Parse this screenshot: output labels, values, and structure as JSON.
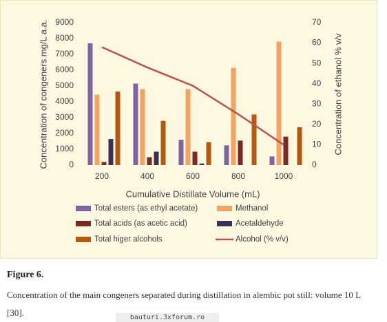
{
  "chart_data": {
    "type": "bar",
    "x_label": "Cumulative Distillate Volume (mL)",
    "y_label": "Concentration of congeners mg/L a.a.",
    "y2_label": "Concentration of ethanol % v/v",
    "categories": [
      "200",
      "400",
      "600",
      "800",
      "1000"
    ],
    "series": [
      {
        "name": "Total esters (as ethyl acetate)",
        "color": "#8064a2",
        "values": [
          7700,
          5150,
          1600,
          1250,
          550
        ]
      },
      {
        "name": "Methanol",
        "color": "#f4a460",
        "values": [
          4450,
          4800,
          4800,
          6150,
          7800
        ]
      },
      {
        "name": "Total acids  (as acetic acid)",
        "color": "#7a2a24",
        "values": [
          200,
          500,
          850,
          1550,
          1800
        ]
      },
      {
        "name": "Acetaldehyde",
        "color": "#3d2f52",
        "values": [
          1650,
          850,
          100,
          0,
          0
        ]
      },
      {
        "name": "Total higer alcohols",
        "color": "#b5590f",
        "values": [
          4650,
          2800,
          1450,
          3200,
          2400
        ]
      },
      {
        "name": "Alcohol (% v/v)",
        "color": "#c0504d",
        "type": "line",
        "axis": "y2",
        "values": [
          58,
          48,
          39,
          25,
          10
        ]
      }
    ],
    "ylim": [
      0,
      9000
    ],
    "yticks": [
      0,
      1000,
      2000,
      3000,
      4000,
      5000,
      6000,
      7000,
      8000,
      9000
    ],
    "y2lim": [
      0,
      70
    ],
    "y2ticks": [
      0,
      10,
      20,
      30,
      40,
      50,
      60,
      70
    ],
    "grid": false,
    "legend": "bottom"
  },
  "figure": {
    "label": "Figure 6.",
    "caption": "Concentration of the main congeners separated during distillation in alembic pot still: volume 10 L [30]."
  },
  "watermark": "bauturi.3xforum.ro"
}
